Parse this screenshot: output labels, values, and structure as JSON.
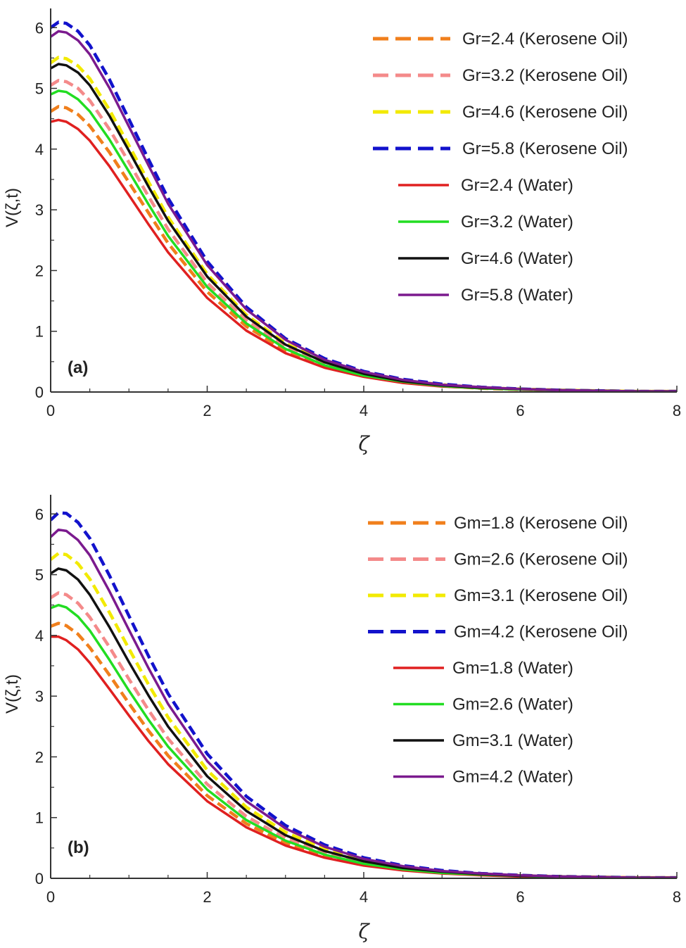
{
  "chart_data": [
    {
      "type": "line",
      "panel_label": "(a)",
      "xlabel": "ζ",
      "ylabel": "V(ζ,t)",
      "xlim": [
        0,
        8
      ],
      "ylim": [
        0,
        6.2
      ],
      "xticks": [
        "0",
        "2",
        "4",
        "6",
        "8"
      ],
      "yticks": [
        "0",
        "1",
        "2",
        "3",
        "4",
        "5",
        "6"
      ],
      "grid": false,
      "legend_position": "top-right",
      "x": [
        0,
        0.1,
        0.2,
        0.35,
        0.5,
        0.75,
        1,
        1.25,
        1.5,
        2,
        2.5,
        3,
        3.5,
        4,
        4.5,
        5,
        5.5,
        6,
        6.5,
        7,
        7.5,
        8
      ],
      "series": [
        {
          "name": "Gr=2.4 (Kerosene Oil)",
          "color": "#f07f1c",
          "dash": "dashed",
          "values": [
            4.62,
            4.7,
            4.68,
            4.57,
            4.38,
            3.95,
            3.45,
            2.95,
            2.45,
            1.65,
            1.08,
            0.68,
            0.42,
            0.26,
            0.16,
            0.1,
            0.06,
            0.04,
            0.03,
            0.02,
            0.01,
            0.01
          ]
        },
        {
          "name": "Gr=3.2 (Kerosene Oil)",
          "color": "#f48a8a",
          "dash": "dashed",
          "values": [
            5.05,
            5.13,
            5.11,
            5.0,
            4.8,
            4.33,
            3.78,
            3.22,
            2.68,
            1.8,
            1.18,
            0.74,
            0.46,
            0.28,
            0.17,
            0.11,
            0.07,
            0.04,
            0.03,
            0.02,
            0.01,
            0.01
          ]
        },
        {
          "name": "Gr=4.6 (Kerosene Oil)",
          "color": "#f2ea00",
          "dash": "dashed",
          "values": [
            5.42,
            5.51,
            5.49,
            5.37,
            5.16,
            4.65,
            4.06,
            3.46,
            2.88,
            1.94,
            1.27,
            0.8,
            0.5,
            0.31,
            0.19,
            0.12,
            0.07,
            0.05,
            0.03,
            0.02,
            0.01,
            0.01
          ]
        },
        {
          "name": "Gr=5.8 (Kerosene Oil)",
          "color": "#1212cc",
          "dash": "dashed",
          "values": [
            6.0,
            6.09,
            6.07,
            5.94,
            5.71,
            5.15,
            4.49,
            3.83,
            3.19,
            2.15,
            1.4,
            0.88,
            0.55,
            0.34,
            0.21,
            0.13,
            0.08,
            0.05,
            0.03,
            0.02,
            0.01,
            0.01
          ]
        },
        {
          "name": "Gr=2.4 (Water)",
          "color": "#e02020",
          "dash": "solid",
          "values": [
            4.45,
            4.48,
            4.45,
            4.33,
            4.14,
            3.72,
            3.24,
            2.76,
            2.3,
            1.55,
            1.01,
            0.64,
            0.4,
            0.25,
            0.15,
            0.09,
            0.06,
            0.04,
            0.02,
            0.02,
            0.01,
            0.01
          ]
        },
        {
          "name": "Gr=3.2 (Water)",
          "color": "#22dd22",
          "dash": "solid",
          "values": [
            4.9,
            4.96,
            4.94,
            4.82,
            4.62,
            4.16,
            3.63,
            3.09,
            2.57,
            1.73,
            1.13,
            0.71,
            0.44,
            0.27,
            0.17,
            0.1,
            0.06,
            0.04,
            0.03,
            0.02,
            0.01,
            0.01
          ]
        },
        {
          "name": "Gr=4.6 (Water)",
          "color": "#111111",
          "dash": "solid",
          "values": [
            5.33,
            5.4,
            5.38,
            5.26,
            5.05,
            4.55,
            3.97,
            3.38,
            2.82,
            1.9,
            1.24,
            0.78,
            0.49,
            0.3,
            0.18,
            0.11,
            0.07,
            0.05,
            0.03,
            0.02,
            0.01,
            0.01
          ]
        },
        {
          "name": "Gr=5.8 (Water)",
          "color": "#7b1a8e",
          "dash": "solid",
          "values": [
            5.85,
            5.94,
            5.92,
            5.79,
            5.56,
            5.01,
            4.37,
            3.73,
            3.1,
            2.09,
            1.36,
            0.86,
            0.53,
            0.33,
            0.2,
            0.12,
            0.08,
            0.05,
            0.03,
            0.02,
            0.01,
            0.01
          ]
        }
      ]
    },
    {
      "type": "line",
      "panel_label": "(b)",
      "xlabel": "ζ",
      "ylabel": "V(ζ,t)",
      "xlim": [
        0,
        8
      ],
      "ylim": [
        0,
        6.2
      ],
      "xticks": [
        "0",
        "2",
        "4",
        "6",
        "8"
      ],
      "yticks": [
        "0",
        "1",
        "2",
        "3",
        "4",
        "5",
        "6"
      ],
      "grid": false,
      "legend_position": "top-right",
      "x": [
        0,
        0.1,
        0.2,
        0.35,
        0.5,
        0.75,
        1,
        1.25,
        1.5,
        2,
        2.5,
        3,
        3.5,
        4,
        4.5,
        5,
        5.5,
        6,
        6.5,
        7,
        7.5,
        8
      ],
      "series": [
        {
          "name": "Gm=1.8 (Kerosene Oil)",
          "color": "#f07f1c",
          "dash": "dashed",
          "values": [
            4.15,
            4.2,
            4.16,
            4.02,
            3.8,
            3.35,
            2.88,
            2.43,
            2.02,
            1.36,
            0.9,
            0.58,
            0.37,
            0.23,
            0.14,
            0.09,
            0.06,
            0.04,
            0.02,
            0.02,
            0.01,
            0.01
          ]
        },
        {
          "name": "Gm=2.6 (Kerosene Oil)",
          "color": "#f48a8a",
          "dash": "dashed",
          "values": [
            4.62,
            4.7,
            4.67,
            4.53,
            4.3,
            3.81,
            3.28,
            2.77,
            2.3,
            1.55,
            1.02,
            0.66,
            0.42,
            0.26,
            0.16,
            0.1,
            0.06,
            0.04,
            0.03,
            0.02,
            0.01,
            0.01
          ]
        },
        {
          "name": "Gm=3.1 (Kerosene Oil)",
          "color": "#f2ea00",
          "dash": "dashed",
          "values": [
            5.25,
            5.35,
            5.33,
            5.18,
            4.93,
            4.38,
            3.78,
            3.19,
            2.65,
            1.78,
            1.17,
            0.76,
            0.48,
            0.3,
            0.18,
            0.11,
            0.07,
            0.05,
            0.03,
            0.02,
            0.01,
            0.01
          ]
        },
        {
          "name": "Gm=4.2 (Kerosene Oil)",
          "color": "#1212cc",
          "dash": "dashed",
          "values": [
            5.9,
            6.02,
            6.01,
            5.86,
            5.6,
            4.99,
            4.32,
            3.66,
            3.04,
            2.05,
            1.35,
            0.87,
            0.55,
            0.34,
            0.21,
            0.13,
            0.08,
            0.05,
            0.03,
            0.02,
            0.01,
            0.01
          ]
        },
        {
          "name": "Gm=1.8 (Water)",
          "color": "#e02020",
          "dash": "solid",
          "values": [
            3.98,
            3.98,
            3.92,
            3.77,
            3.55,
            3.12,
            2.68,
            2.26,
            1.88,
            1.27,
            0.84,
            0.54,
            0.34,
            0.21,
            0.13,
            0.08,
            0.05,
            0.03,
            0.02,
            0.01,
            0.01,
            0.01
          ]
        },
        {
          "name": "Gm=2.6 (Water)",
          "color": "#22dd22",
          "dash": "solid",
          "values": [
            4.45,
            4.5,
            4.46,
            4.31,
            4.08,
            3.6,
            3.09,
            2.61,
            2.17,
            1.46,
            0.96,
            0.62,
            0.39,
            0.24,
            0.15,
            0.09,
            0.06,
            0.04,
            0.02,
            0.02,
            0.01,
            0.01
          ]
        },
        {
          "name": "Gm=3.1 (Water)",
          "color": "#111111",
          "dash": "solid",
          "values": [
            5.02,
            5.1,
            5.07,
            4.92,
            4.67,
            4.14,
            3.56,
            3.01,
            2.5,
            1.68,
            1.11,
            0.71,
            0.45,
            0.28,
            0.17,
            0.11,
            0.07,
            0.04,
            0.03,
            0.02,
            0.01,
            0.01
          ]
        },
        {
          "name": "Gm=4.2 (Water)",
          "color": "#7b1a8e",
          "dash": "solid",
          "values": [
            5.62,
            5.74,
            5.72,
            5.57,
            5.32,
            4.73,
            4.09,
            3.46,
            2.87,
            1.93,
            1.27,
            0.82,
            0.52,
            0.32,
            0.2,
            0.12,
            0.08,
            0.05,
            0.03,
            0.02,
            0.01,
            0.01
          ]
        }
      ]
    }
  ]
}
